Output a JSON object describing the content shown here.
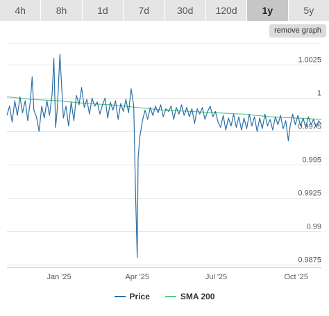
{
  "tabs": [
    {
      "label": "4h",
      "active": false
    },
    {
      "label": "8h",
      "active": false
    },
    {
      "label": "1d",
      "active": false
    },
    {
      "label": "7d",
      "active": false
    },
    {
      "label": "30d",
      "active": false
    },
    {
      "label": "120d",
      "active": false
    },
    {
      "label": "1y",
      "active": true
    },
    {
      "label": "5y",
      "active": false
    }
  ],
  "remove_graph_label": "remove graph",
  "chart_data": {
    "type": "line",
    "ylim": [
      0.98727,
      1.00409
    ],
    "xlim": [
      "2024-11-02",
      "2025-10-30"
    ],
    "y_ticks": [
      {
        "value": 1.0025,
        "label": "1.0025"
      },
      {
        "value": 1.0,
        "label": "1"
      },
      {
        "value": 0.9975,
        "label": "0.9975"
      },
      {
        "value": 0.995,
        "label": "0.995"
      },
      {
        "value": 0.9925,
        "label": "0.9925"
      },
      {
        "value": 0.99,
        "label": "0.99"
      },
      {
        "value": 0.9875,
        "label": "0.9875"
      }
    ],
    "x_ticks": [
      {
        "date": "2025-01-01",
        "label": "Jan '25"
      },
      {
        "date": "2025-04-01",
        "label": "Apr '25"
      },
      {
        "date": "2025-07-01",
        "label": "Jul '25"
      },
      {
        "date": "2025-10-01",
        "label": "Oct '25"
      }
    ],
    "grid": true,
    "legend_position": "bottom",
    "series": [
      {
        "name": "Price",
        "color": "#2b6fa6",
        "points": [
          [
            "2024-11-02",
            0.9987
          ],
          [
            "2024-11-05",
            0.9994
          ],
          [
            "2024-11-08",
            0.9982
          ],
          [
            "2024-11-11",
            0.9998
          ],
          [
            "2024-11-14",
            0.9987
          ],
          [
            "2024-11-17",
            1.0001
          ],
          [
            "2024-11-20",
            0.9989
          ],
          [
            "2024-11-23",
            0.9998
          ],
          [
            "2024-11-26",
            0.9983
          ],
          [
            "2024-11-29",
            0.9998
          ],
          [
            "2024-12-01",
            1.0016
          ],
          [
            "2024-12-03",
            0.9991
          ],
          [
            "2024-12-06",
            0.9986
          ],
          [
            "2024-12-09",
            0.9975
          ],
          [
            "2024-12-12",
            0.9994
          ],
          [
            "2024-12-15",
            0.9985
          ],
          [
            "2024-12-18",
            0.9998
          ],
          [
            "2024-12-21",
            0.9987
          ],
          [
            "2024-12-24",
            1.0003
          ],
          [
            "2024-12-26",
            1.003
          ],
          [
            "2024-12-28",
            0.9978
          ],
          [
            "2024-12-30",
            0.9992
          ],
          [
            "2025-01-02",
            1.0033
          ],
          [
            "2025-01-04",
            1.0009
          ],
          [
            "2025-01-06",
            0.9985
          ],
          [
            "2025-01-09",
            0.9994
          ],
          [
            "2025-01-12",
            0.9979
          ],
          [
            "2025-01-15",
            0.9997
          ],
          [
            "2025-01-18",
            0.9983
          ],
          [
            "2025-01-21",
            1.0002
          ],
          [
            "2025-01-24",
            0.9995
          ],
          [
            "2025-01-27",
            1.0008
          ],
          [
            "2025-01-30",
            0.9993
          ],
          [
            "2025-02-02",
            0.9999
          ],
          [
            "2025-02-05",
            0.9988
          ],
          [
            "2025-02-08",
            1.0
          ],
          [
            "2025-02-11",
            0.9994
          ],
          [
            "2025-02-14",
            0.9997
          ],
          [
            "2025-02-17",
            0.9988
          ],
          [
            "2025-02-20",
            0.9995
          ],
          [
            "2025-02-23",
            1.0
          ],
          [
            "2025-02-26",
            0.9985
          ],
          [
            "2025-03-01",
            0.9997
          ],
          [
            "2025-03-04",
            0.9991
          ],
          [
            "2025-03-07",
            0.9998
          ],
          [
            "2025-03-10",
            0.9984
          ],
          [
            "2025-03-13",
            0.9996
          ],
          [
            "2025-03-16",
            0.999
          ],
          [
            "2025-03-19",
            0.9999
          ],
          [
            "2025-03-22",
            0.9989
          ],
          [
            "2025-03-25",
            1.0007
          ],
          [
            "2025-03-28",
            0.9994
          ],
          [
            "2025-03-30",
            0.993
          ],
          [
            "2025-04-01",
            0.988
          ],
          [
            "2025-04-02",
            0.9955
          ],
          [
            "2025-04-04",
            0.9971
          ],
          [
            "2025-04-07",
            0.9983
          ],
          [
            "2025-04-10",
            0.9991
          ],
          [
            "2025-04-13",
            0.9984
          ],
          [
            "2025-04-16",
            0.9993
          ],
          [
            "2025-04-19",
            0.9987
          ],
          [
            "2025-04-22",
            0.9994
          ],
          [
            "2025-04-25",
            0.9989
          ],
          [
            "2025-04-28",
            0.9995
          ],
          [
            "2025-05-01",
            0.9986
          ],
          [
            "2025-05-04",
            0.9992
          ],
          [
            "2025-05-07",
            0.999
          ],
          [
            "2025-05-10",
            0.9994
          ],
          [
            "2025-05-13",
            0.9984
          ],
          [
            "2025-05-16",
            0.9993
          ],
          [
            "2025-05-19",
            0.9988
          ],
          [
            "2025-05-22",
            0.9995
          ],
          [
            "2025-05-25",
            0.9987
          ],
          [
            "2025-05-28",
            0.9993
          ],
          [
            "2025-05-31",
            0.9986
          ],
          [
            "2025-06-03",
            0.9992
          ],
          [
            "2025-06-06",
            0.9981
          ],
          [
            "2025-06-09",
            0.9992
          ],
          [
            "2025-06-12",
            0.9988
          ],
          [
            "2025-06-15",
            0.9993
          ],
          [
            "2025-06-18",
            0.9984
          ],
          [
            "2025-06-21",
            0.999
          ],
          [
            "2025-06-24",
            0.9994
          ],
          [
            "2025-06-27",
            0.9986
          ],
          [
            "2025-06-30",
            0.999
          ],
          [
            "2025-07-03",
            0.9982
          ],
          [
            "2025-07-06",
            0.9978
          ],
          [
            "2025-07-09",
            0.9987
          ],
          [
            "2025-07-12",
            0.9976
          ],
          [
            "2025-07-15",
            0.9985
          ],
          [
            "2025-07-18",
            0.9979
          ],
          [
            "2025-07-21",
            0.9988
          ],
          [
            "2025-07-24",
            0.9978
          ],
          [
            "2025-07-27",
            0.9986
          ],
          [
            "2025-07-30",
            0.9976
          ],
          [
            "2025-08-02",
            0.9985
          ],
          [
            "2025-08-05",
            0.9977
          ],
          [
            "2025-08-08",
            0.9988
          ],
          [
            "2025-08-11",
            0.9979
          ],
          [
            "2025-08-14",
            0.9986
          ],
          [
            "2025-08-17",
            0.9975
          ],
          [
            "2025-08-20",
            0.9985
          ],
          [
            "2025-08-23",
            0.9977
          ],
          [
            "2025-08-26",
            0.9988
          ],
          [
            "2025-08-29",
            0.9979
          ],
          [
            "2025-09-01",
            0.9984
          ],
          [
            "2025-09-04",
            0.9976
          ],
          [
            "2025-09-07",
            0.9986
          ],
          [
            "2025-09-10",
            0.998
          ],
          [
            "2025-09-13",
            0.9987
          ],
          [
            "2025-09-16",
            0.9977
          ],
          [
            "2025-09-19",
            0.9983
          ],
          [
            "2025-09-22",
            0.9968
          ],
          [
            "2025-09-24",
            0.9979
          ],
          [
            "2025-09-27",
            0.9988
          ],
          [
            "2025-09-30",
            0.998
          ],
          [
            "2025-10-03",
            0.9987
          ],
          [
            "2025-10-06",
            0.9979
          ],
          [
            "2025-10-09",
            0.9985
          ],
          [
            "2025-10-12",
            0.9978
          ],
          [
            "2025-10-15",
            0.9986
          ],
          [
            "2025-10-18",
            0.998
          ],
          [
            "2025-10-21",
            0.9984
          ],
          [
            "2025-10-24",
            0.9978
          ],
          [
            "2025-10-27",
            0.9983
          ],
          [
            "2025-10-30",
            0.998
          ]
        ]
      },
      {
        "name": "SMA 200",
        "color": "#5ac88c",
        "points": [
          [
            "2024-11-02",
            1.0001
          ],
          [
            "2024-12-01",
            0.9999
          ],
          [
            "2025-01-01",
            0.9998
          ],
          [
            "2025-02-01",
            0.9996
          ],
          [
            "2025-03-01",
            0.9995
          ],
          [
            "2025-04-01",
            0.9993
          ],
          [
            "2025-05-01",
            0.9991
          ],
          [
            "2025-06-01",
            0.999
          ],
          [
            "2025-07-01",
            0.9989
          ],
          [
            "2025-08-01",
            0.9988
          ],
          [
            "2025-09-01",
            0.9986
          ],
          [
            "2025-10-01",
            0.9985
          ],
          [
            "2025-10-30",
            0.9984
          ]
        ]
      }
    ]
  }
}
